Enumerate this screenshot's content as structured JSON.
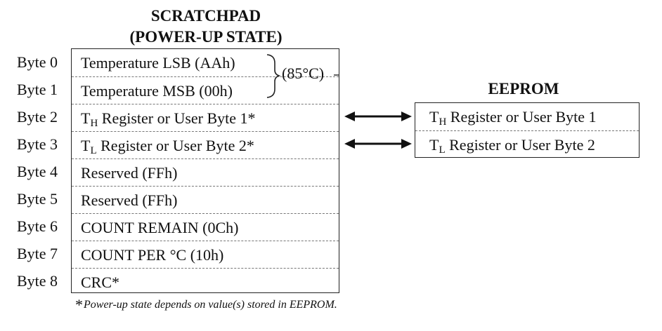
{
  "scratchpad": {
    "title_line1": "SCRATCHPAD",
    "title_line2": "(POWER-UP STATE)",
    "rows": [
      {
        "byte": "Byte 0",
        "text": "Temperature LSB (AAh)"
      },
      {
        "byte": "Byte 1",
        "text": "Temperature MSB (00h)"
      },
      {
        "byte": "Byte 2",
        "pre": "T",
        "sub": "H",
        "post": " Register or User Byte 1*"
      },
      {
        "byte": "Byte 3",
        "pre": "T",
        "sub": "L",
        "post": " Register or User Byte 2*"
      },
      {
        "byte": "Byte 4",
        "text": "Reserved (FFh)"
      },
      {
        "byte": "Byte 5",
        "text": "Reserved (FFh)"
      },
      {
        "byte": "Byte 6",
        "text": "COUNT REMAIN (0Ch)"
      },
      {
        "byte": "Byte 7",
        "text": "COUNT PER °C  (10h)"
      },
      {
        "byte": "Byte 8",
        "text": "CRC*"
      }
    ],
    "power_up_temp": "(85°C)"
  },
  "eeprom": {
    "title": "EEPROM",
    "rows": [
      {
        "pre": "T",
        "sub": "H",
        "post": " Register or User Byte 1"
      },
      {
        "pre": "T",
        "sub": "L",
        "post": " Register or User Byte 2"
      }
    ]
  },
  "footnote": {
    "star": "*",
    "text": "Power-up state depends on value(s) stored in EEPROM."
  },
  "colors": {
    "line": "#222222",
    "divider": "#777777",
    "background": "#ffffff"
  }
}
